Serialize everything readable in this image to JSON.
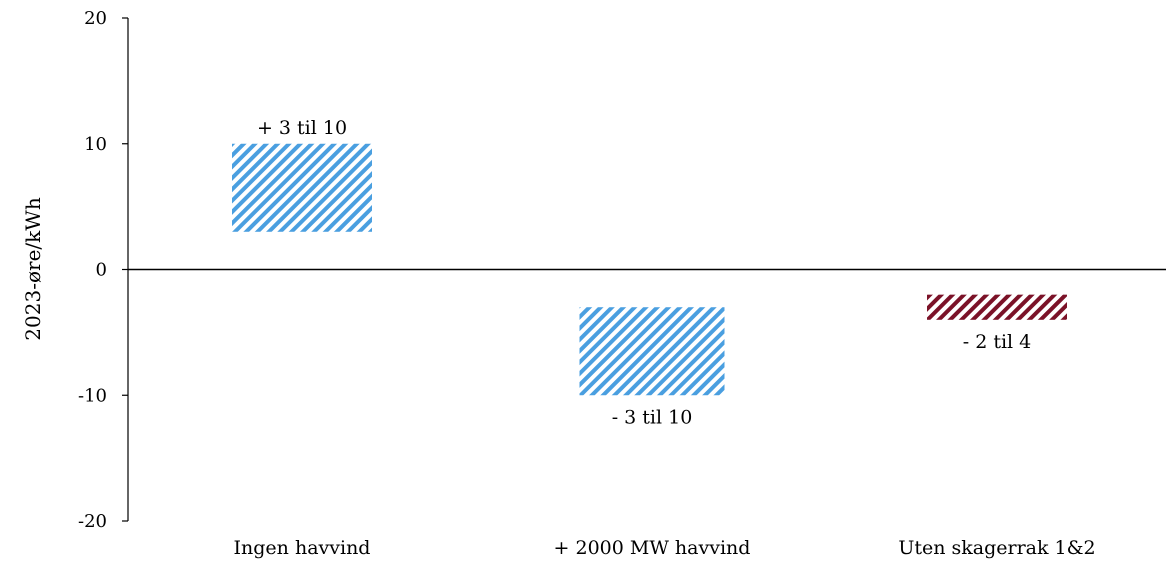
{
  "chart_data": {
    "type": "bar",
    "title": "",
    "xlabel": "",
    "ylabel": "2023-øre/kWh",
    "ylim": [
      -20,
      20
    ],
    "yticks": [
      20,
      10,
      0,
      -10,
      -20
    ],
    "grid": false,
    "legend": "none",
    "categories": [
      "Ingen havvind",
      "+ 2000 MW havvind",
      "Uten skagerrak 1&2"
    ],
    "ranges": [
      {
        "low": 3,
        "high": 10,
        "label": "+ 3 til 10",
        "label_position": "above",
        "color": "#4a9fe0",
        "pattern": "diagonal-hatch"
      },
      {
        "low": -10,
        "high": -3,
        "label": "- 3 til 10",
        "label_position": "below",
        "color": "#4a9fe0",
        "pattern": "diagonal-hatch"
      },
      {
        "low": -4,
        "high": -2,
        "label": "- 2 til 4",
        "label_position": "below",
        "color": "#7b1228",
        "pattern": "diagonal-hatch"
      }
    ]
  }
}
